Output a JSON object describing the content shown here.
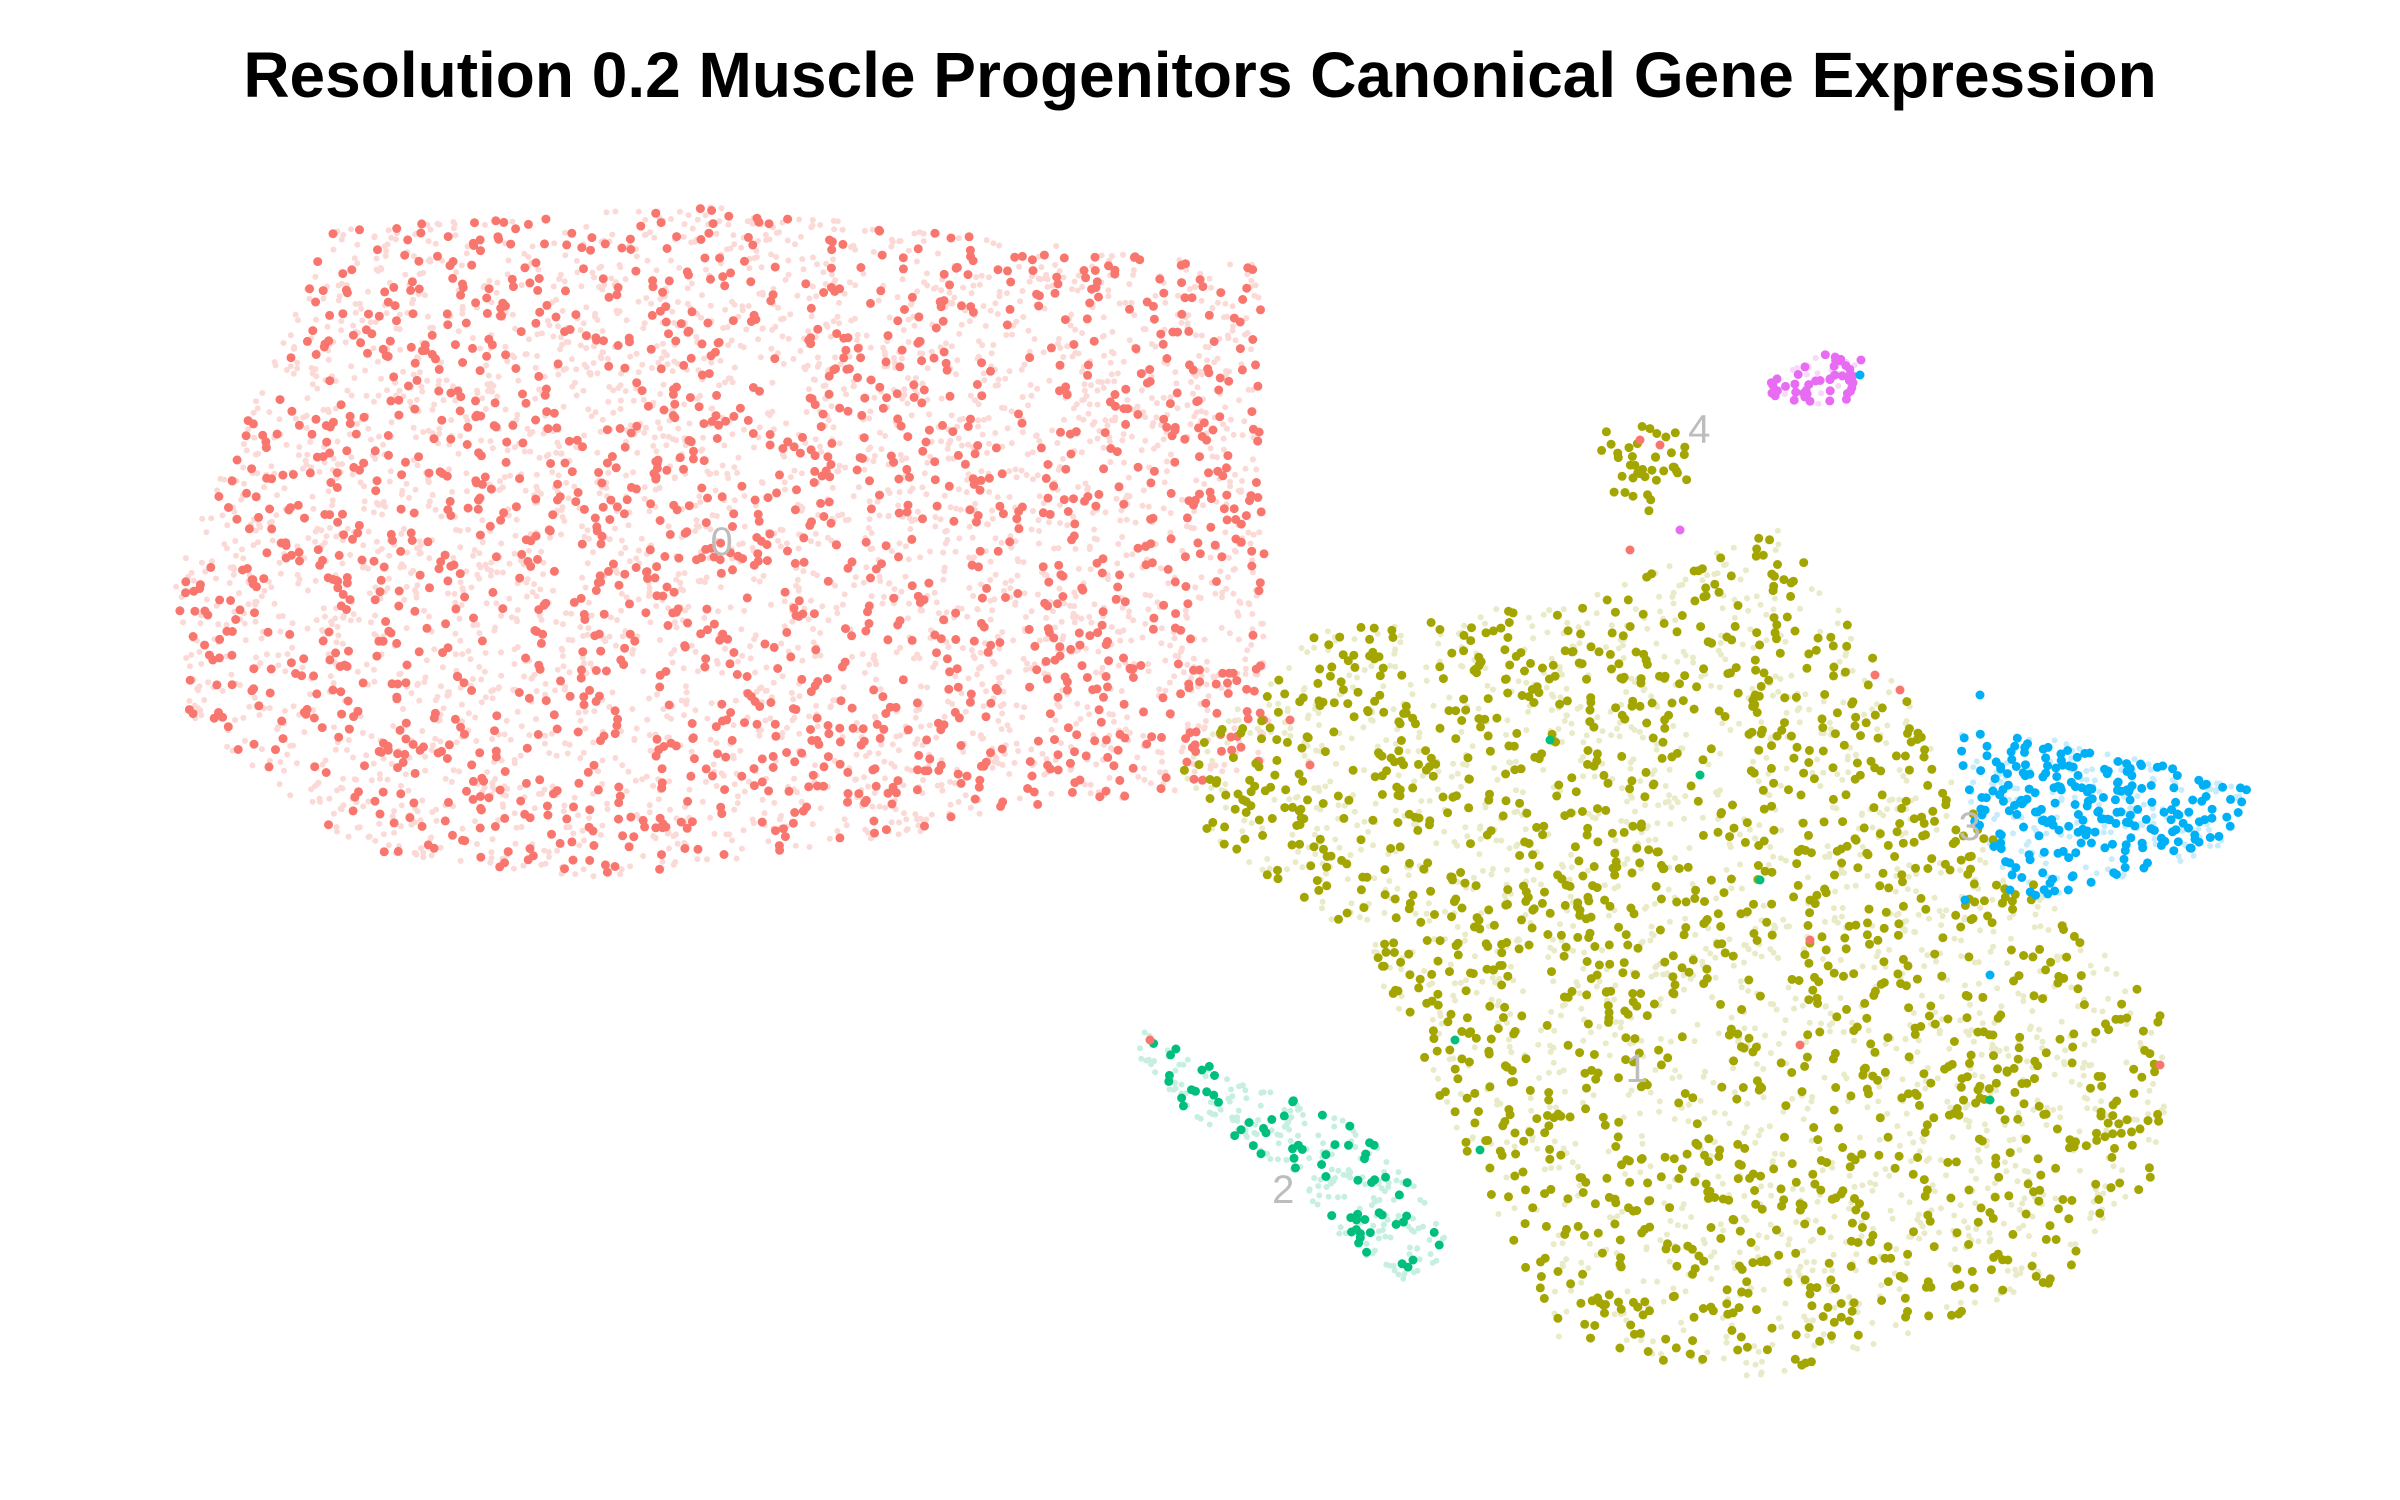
{
  "chart_data": {
    "type": "scatter",
    "title": "Resolution 0.2 Muscle Progenitors Canonical Gene Expression",
    "xlabel": "",
    "ylabel": "",
    "axes_visible": false,
    "grid": false,
    "legend": "none",
    "clusters": [
      {
        "id": "0",
        "label": "0",
        "color": "#F8766D",
        "faded_color": "#FBD9D6",
        "center": [
          -4.6,
          3.9
        ]
      },
      {
        "id": "1",
        "label": "1",
        "color": "#A3A500",
        "faded_color": "#E9EAC7",
        "center": [
          4.2,
          -2.2
        ]
      },
      {
        "id": "2",
        "label": "2",
        "color": "#00BF7D",
        "faded_color": "#C7EFE1",
        "center": [
          0.8,
          -3.6
        ]
      },
      {
        "id": "3",
        "label": "3",
        "color": "#00B0F6",
        "faded_color": "#C7EBFB",
        "center": [
          7.4,
          0.6
        ]
      },
      {
        "id": "4",
        "label": "4",
        "color": "#E76BF3",
        "faded_color": "#F7D7FA",
        "center": [
          4.8,
          5.2
        ]
      }
    ],
    "xlim": [
      -10,
      10
    ],
    "ylim": [
      -6,
      8
    ]
  }
}
